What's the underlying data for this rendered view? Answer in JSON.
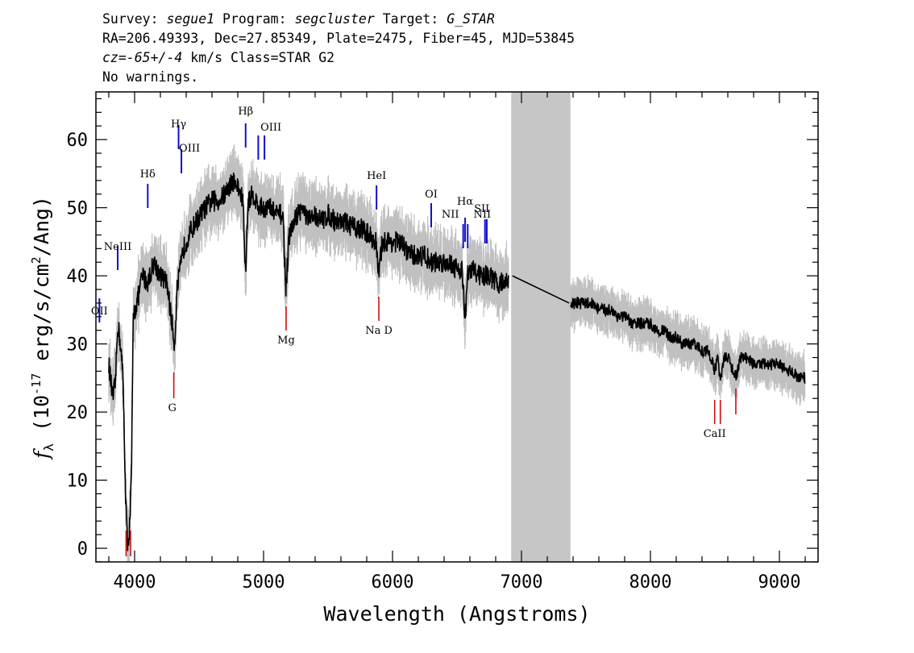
{
  "header": {
    "line1": {
      "survey_label": "Survey: ",
      "survey": "segue1",
      "program_label": " Program: ",
      "program": "segcluster",
      "target_label": " Target: ",
      "target": "G_STAR"
    },
    "line2": "RA=206.49393, Dec=27.85349, Plate=2475, Fiber=45, MJD=53845",
    "line3": {
      "cz": "cz=-65+/-4",
      "rest": " km/s Class=STAR G2"
    },
    "line4": "No warnings."
  },
  "chart_data": {
    "type": "line",
    "title": "",
    "xlabel": "Wavelength (Angstroms)",
    "ylabel": "f_λ (10^-17 erg/s/cm^2/Ang)",
    "ylabel_parts": {
      "f": "f",
      "lambda": "λ",
      "open": " (10",
      "exp": "-17",
      "mid": " erg/s/cm",
      "exp2": "2",
      "close": "/Ang)"
    },
    "xlim": [
      3700,
      9300
    ],
    "ylim": [
      -2,
      67
    ],
    "xticks": [
      4000,
      5000,
      6000,
      7000,
      8000,
      9000
    ],
    "xtick_labels": [
      "4000",
      "5000",
      "6000",
      "7000",
      "8000",
      "9000"
    ],
    "yticks": [
      0,
      10,
      20,
      30,
      40,
      50,
      60
    ],
    "ytick_labels": [
      "0",
      "10",
      "20",
      "30",
      "40",
      "50",
      "60"
    ],
    "masked_region": [
      6920,
      7380
    ],
    "colors": {
      "flux": "#000000",
      "error": "#c0c0c0",
      "mask": "#c6c6c6",
      "emission": "#1010c8",
      "absorption": "#d01010"
    },
    "flux_anchors": [
      [
        3800,
        27
      ],
      [
        3830,
        22
      ],
      [
        3850,
        24
      ],
      [
        3870,
        33
      ],
      [
        3890,
        30
      ],
      [
        3910,
        25
      ],
      [
        3930,
        8
      ],
      [
        3945,
        0
      ],
      [
        3960,
        3
      ],
      [
        3975,
        10
      ],
      [
        3990,
        34
      ],
      [
        4030,
        37
      ],
      [
        4060,
        40
      ],
      [
        4100,
        39
      ],
      [
        4150,
        42
      ],
      [
        4200,
        40
      ],
      [
        4250,
        39
      ],
      [
        4290,
        33
      ],
      [
        4310,
        30
      ],
      [
        4330,
        38
      ],
      [
        4380,
        44
      ],
      [
        4420,
        46
      ],
      [
        4480,
        48
      ],
      [
        4550,
        50
      ],
      [
        4600,
        51
      ],
      [
        4650,
        51
      ],
      [
        4700,
        52
      ],
      [
        4760,
        54
      ],
      [
        4800,
        53
      ],
      [
        4840,
        51
      ],
      [
        4861,
        40
      ],
      [
        4880,
        51
      ],
      [
        4920,
        52
      ],
      [
        4960,
        50
      ],
      [
        5000,
        50
      ],
      [
        5050,
        50
      ],
      [
        5100,
        49
      ],
      [
        5150,
        49
      ],
      [
        5172,
        38
      ],
      [
        5200,
        46
      ],
      [
        5260,
        49
      ],
      [
        5300,
        50
      ],
      [
        5350,
        48
      ],
      [
        5400,
        49
      ],
      [
        5450,
        48
      ],
      [
        5500,
        49
      ],
      [
        5560,
        48
      ],
      [
        5620,
        48
      ],
      [
        5700,
        47
      ],
      [
        5760,
        47
      ],
      [
        5820,
        46
      ],
      [
        5870,
        45
      ],
      [
        5893,
        40
      ],
      [
        5920,
        45
      ],
      [
        5980,
        45
      ],
      [
        6050,
        45
      ],
      [
        6100,
        44
      ],
      [
        6150,
        43
      ],
      [
        6200,
        43
      ],
      [
        6250,
        43
      ],
      [
        6300,
        42
      ],
      [
        6350,
        42
      ],
      [
        6400,
        42
      ],
      [
        6450,
        42
      ],
      [
        6500,
        41
      ],
      [
        6540,
        41
      ],
      [
        6563,
        33
      ],
      [
        6580,
        40
      ],
      [
        6620,
        41
      ],
      [
        6680,
        40
      ],
      [
        6750,
        40
      ],
      [
        6800,
        39
      ],
      [
        6850,
        39
      ],
      [
        6900,
        39
      ]
    ],
    "flux_anchors_red": [
      [
        7380,
        36
      ],
      [
        7420,
        36
      ],
      [
        7480,
        36
      ],
      [
        7550,
        36
      ],
      [
        7600,
        35
      ],
      [
        7650,
        35
      ],
      [
        7700,
        35
      ],
      [
        7750,
        34
      ],
      [
        7800,
        34
      ],
      [
        7850,
        33
      ],
      [
        7900,
        33
      ],
      [
        7950,
        33
      ],
      [
        8000,
        33
      ],
      [
        8050,
        32
      ],
      [
        8100,
        32
      ],
      [
        8150,
        31
      ],
      [
        8200,
        31
      ],
      [
        8250,
        30
      ],
      [
        8300,
        30
      ],
      [
        8350,
        30
      ],
      [
        8400,
        29
      ],
      [
        8450,
        29
      ],
      [
        8498,
        26
      ],
      [
        8520,
        28
      ],
      [
        8542,
        25
      ],
      [
        8570,
        28
      ],
      [
        8600,
        28
      ],
      [
        8662,
        25
      ],
      [
        8700,
        28
      ],
      [
        8750,
        28
      ],
      [
        8800,
        27
      ],
      [
        8850,
        27
      ],
      [
        8900,
        27
      ],
      [
        8950,
        27
      ],
      [
        9000,
        27
      ],
      [
        9050,
        26
      ],
      [
        9100,
        26
      ],
      [
        9150,
        25
      ],
      [
        9200,
        25
      ]
    ],
    "bridge": [
      [
        6930,
        40
      ],
      [
        7370,
        36
      ]
    ],
    "emission_lines": [
      {
        "label": "OII",
        "wave": 3727
      },
      {
        "label": "NeIII",
        "wave": 3869
      },
      {
        "label": "Hδ",
        "wave": 4102
      },
      {
        "label": "Hγ",
        "wave": 4341
      },
      {
        "label": "OIII",
        "wave": 4363
      },
      {
        "label": "Hβ",
        "wave": 4861
      },
      {
        "label": "OIII",
        "wave": 4959
      },
      {
        "label": "OIII",
        "wave": 5007
      },
      {
        "label": "HeI",
        "wave": 5876
      },
      {
        "label": "OI",
        "wave": 6300
      },
      {
        "label": "NII",
        "wave": 6548
      },
      {
        "label": "Hα",
        "wave": 6563
      },
      {
        "label": "NII",
        "wave": 6583
      },
      {
        "label": "SII",
        "wave": 6717
      },
      {
        "label": "SII",
        "wave": 6731
      }
    ],
    "absorption_lines": [
      {
        "label": "",
        "wave": 3934
      },
      {
        "label": "",
        "wave": 3969
      },
      {
        "label": "G",
        "wave": 4304
      },
      {
        "label": "Mg",
        "wave": 5175
      },
      {
        "label": "Na D",
        "wave": 5894
      },
      {
        "label": "CaII",
        "wave": 8498
      },
      {
        "label": "",
        "wave": 8542
      },
      {
        "label": "",
        "wave": 8662
      }
    ]
  }
}
